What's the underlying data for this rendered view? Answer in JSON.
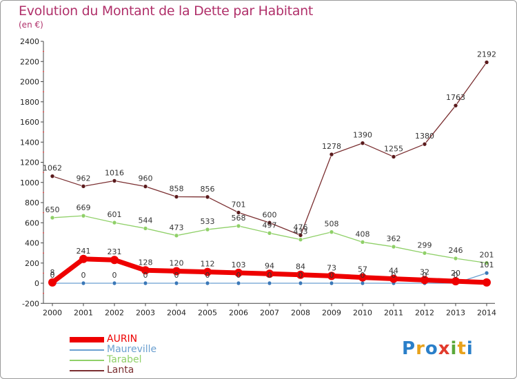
{
  "header": {
    "title": "Evolution du Montant de la Dette par Habitant",
    "subtitle": "(en €)"
  },
  "logo": {
    "text": "Proxiti",
    "colors": [
      "#2a7fc9",
      "#e8a21c",
      "#2a7fc9",
      "#e23b2d",
      "#5aa83a",
      "#e8a21c",
      "#2a7fc9"
    ]
  },
  "chart_data": {
    "type": "line",
    "title": "Evolution du Montant de la Dette par Habitant",
    "subtitle": "(en €)",
    "x": [
      "2000",
      "2001",
      "2002",
      "2003",
      "2004",
      "2005",
      "2006",
      "2007",
      "2008",
      "2009",
      "2010",
      "2011",
      "2012",
      "2013",
      "2014"
    ],
    "ylim": [
      -200,
      2400
    ],
    "yticks": [
      -200,
      0,
      200,
      400,
      600,
      800,
      1000,
      1200,
      1400,
      1600,
      1800,
      2000,
      2200,
      2400
    ],
    "grid": false,
    "legend_position": "bottom-left",
    "series": [
      {
        "name": "AURIN",
        "color": "#ee0000",
        "marker": "#ee0000",
        "width": 7,
        "values": [
          8,
          241,
          231,
          128,
          120,
          112,
          103,
          94,
          84,
          73,
          57,
          44,
          32,
          20,
          8
        ],
        "labels": [
          "8",
          "241",
          "231",
          "128",
          "120",
          "112",
          "103",
          "94",
          "84",
          "73",
          "57",
          "44",
          "32",
          "20",
          ""
        ]
      },
      {
        "name": "Maureville",
        "color": "#6a9fd0",
        "marker": "#3a78b8",
        "width": 1.3,
        "values": [
          0,
          0,
          0,
          0,
          0,
          0,
          0,
          0,
          0,
          0,
          0,
          0,
          0,
          0,
          101
        ],
        "labels": [
          "0",
          "0",
          "0",
          "0",
          "0",
          "0",
          "0",
          "0",
          "0",
          "0",
          "0",
          "0",
          "0",
          "0",
          "101"
        ]
      },
      {
        "name": "Tarabel",
        "color": "#8fd068",
        "marker": "#8fd068",
        "width": 1.3,
        "values": [
          650,
          669,
          601,
          544,
          473,
          533,
          568,
          497,
          433,
          508,
          408,
          362,
          299,
          246,
          201
        ],
        "labels": [
          "650",
          "669",
          "601",
          "544",
          "473",
          "533",
          "568",
          "497",
          "433",
          "508",
          "408",
          "362",
          "299",
          "246",
          "201"
        ]
      },
      {
        "name": "Lanta",
        "color": "#7a2e30",
        "marker": "#5a1a1c",
        "width": 1.3,
        "values": [
          1062,
          962,
          1016,
          960,
          858,
          856,
          701,
          600,
          476,
          1278,
          1390,
          1255,
          1380,
          1763,
          2192
        ],
        "labels": [
          "1062",
          "962",
          "1016",
          "960",
          "858",
          "856",
          "701",
          "600",
          "476",
          "1278",
          "1390",
          "1255",
          "1380",
          "1763",
          "2192"
        ]
      }
    ]
  }
}
